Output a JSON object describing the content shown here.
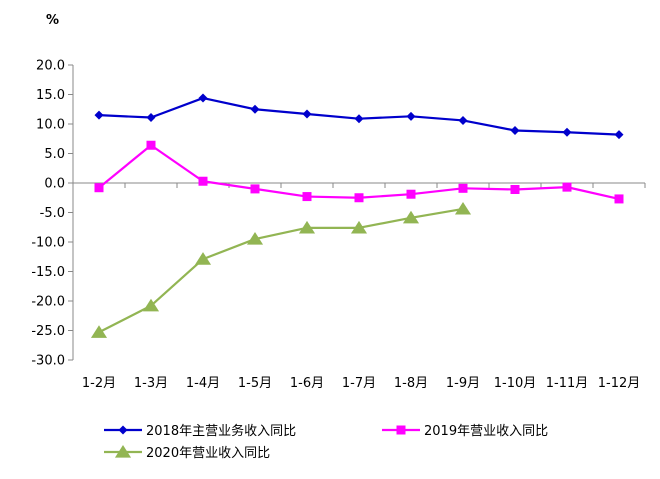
{
  "chart_data": {
    "type": "line",
    "unit_label": "%",
    "categories": [
      "1-2月",
      "1-3月",
      "1-4月",
      "1-5月",
      "1-6月",
      "1-7月",
      "1-8月",
      "1-9月",
      "1-10月",
      "1-11月",
      "1-12月"
    ],
    "ylim": [
      -30,
      20
    ],
    "yticks": [
      20,
      15,
      10,
      5,
      0,
      -5,
      -10,
      -15,
      -20,
      -25,
      -30
    ],
    "ytick_labels": [
      "20.0",
      "15.0",
      "10.0",
      "5.0",
      "0.0",
      "-5.0",
      "-10.0",
      "-15.0",
      "-20.0",
      "-25.0",
      "-30.0"
    ],
    "grid": false,
    "legend_position": "bottom",
    "series": [
      {
        "name": "2018年主营业务收入同比",
        "color": "#0000CC",
        "marker": "diamond",
        "values": [
          11.5,
          11.1,
          14.4,
          12.5,
          11.7,
          10.9,
          11.3,
          10.6,
          8.9,
          8.6,
          8.2
        ]
      },
      {
        "name": "2019年营业收入同比",
        "color": "#FF00FF",
        "marker": "square",
        "values": [
          -0.8,
          6.4,
          0.3,
          -1.0,
          -2.3,
          -2.5,
          -1.9,
          -0.9,
          -1.1,
          -0.7,
          -2.7
        ]
      },
      {
        "name": "2020年营业收入同比",
        "color": "#92B553",
        "marker": "triangle",
        "values": [
          -25.3,
          -20.8,
          -12.9,
          -9.5,
          -7.6,
          -7.6,
          -5.9,
          -4.4,
          null,
          null,
          null
        ]
      }
    ]
  }
}
